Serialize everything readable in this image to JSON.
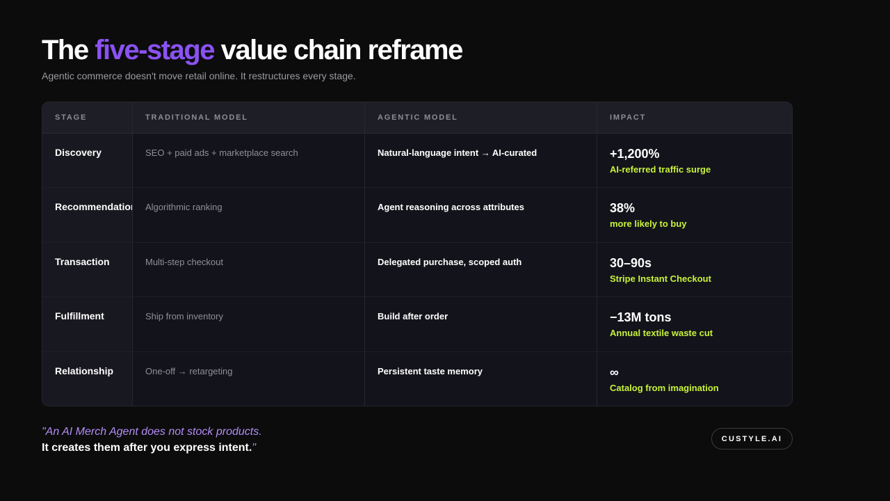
{
  "header": {
    "title_before": "The ",
    "title_accent": "five-stage",
    "title_after": " value chain reframe",
    "subtitle": "Agentic commerce doesn't move retail online. It restructures every stage."
  },
  "table": {
    "columns": [
      "STAGE",
      "TRADITIONAL MODEL",
      "AGENTIC MODEL",
      "IMPACT"
    ],
    "rows": [
      {
        "stage": "Discovery",
        "traditional": "SEO + paid ads + marketplace search",
        "agentic": "Natural-language intent → AI-curated",
        "impact_value": "+1,200%",
        "impact_note": "AI-referred traffic surge"
      },
      {
        "stage": "Recommendation",
        "traditional": "Algorithmic ranking",
        "agentic": "Agent reasoning across attributes",
        "impact_value": "38%",
        "impact_note": "more likely to buy"
      },
      {
        "stage": "Transaction",
        "traditional": "Multi-step checkout",
        "agentic": "Delegated purchase, scoped auth",
        "impact_value": "30–90s",
        "impact_note": "Stripe Instant Checkout"
      },
      {
        "stage": "Fulfillment",
        "traditional": "Ship from inventory",
        "agentic": "Build after order",
        "impact_value": "−13M tons",
        "impact_note": "Annual textile waste cut"
      },
      {
        "stage": "Relationship",
        "traditional": "One-off → retargeting",
        "agentic": "Persistent taste memory",
        "impact_value": "∞",
        "impact_note": "Catalog from imagination"
      }
    ]
  },
  "footer": {
    "quote_line1": "\"An AI Merch Agent does not stock products.",
    "quote_line2": "It creates them after you express intent.",
    "quote_close": "\"",
    "brand": "CUSTYLE.AI"
  },
  "colors": {
    "background": "#0c0c0d",
    "accent_purple": "#8b52f2",
    "impact_green": "#c8f33a"
  }
}
